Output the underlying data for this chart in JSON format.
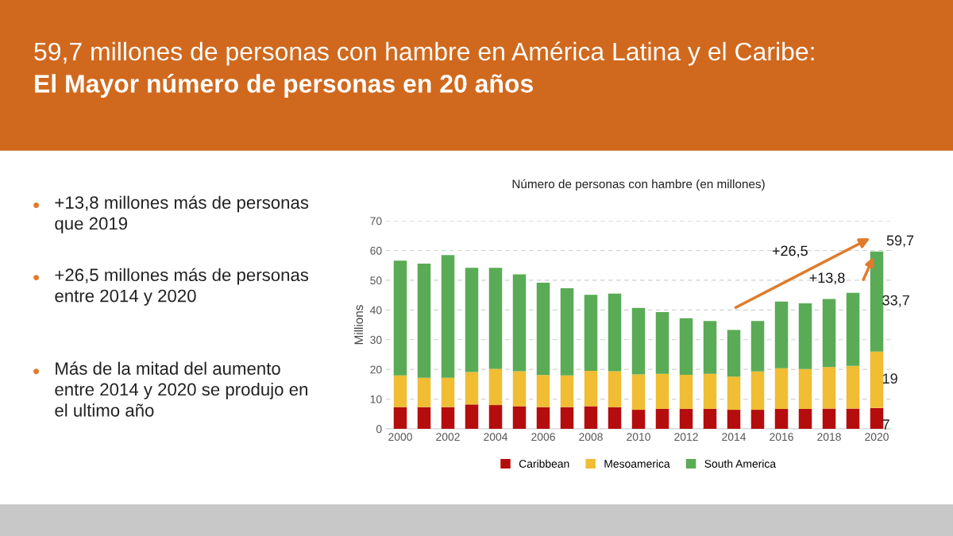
{
  "chart_data": {
    "type": "bar",
    "stacked": true,
    "title": "59,7 millones de personas con hambre en América Latina y el Caribe:",
    "subtitle": "El Mayor número de personas en 20 años",
    "ylabel": "Millions",
    "x": [
      2000,
      2001,
      2002,
      2003,
      2004,
      2005,
      2006,
      2007,
      2008,
      2009,
      2010,
      2011,
      2012,
      2013,
      2014,
      2015,
      2016,
      2017,
      2018,
      2019,
      2020
    ],
    "xlim": [
      1999.4,
      2020.6
    ],
    "xticks": [
      2000,
      2002,
      2004,
      2006,
      2008,
      2010,
      2012,
      2014,
      2016,
      2018,
      2020
    ],
    "ylim": [
      0,
      70
    ],
    "yticks": [
      0,
      10,
      20,
      30,
      40,
      50,
      60,
      70
    ],
    "grid": "y",
    "legend": "bottom",
    "series": [
      {
        "name": "Caribbean",
        "color": "#b50d0d",
        "values": [
          7.3,
          7.3,
          7.3,
          8.2,
          8.0,
          7.6,
          7.3,
          7.3,
          7.6,
          7.3,
          6.4,
          6.7,
          6.7,
          6.7,
          6.4,
          6.4,
          6.7,
          6.7,
          6.8,
          6.8,
          7
        ],
        "value_labels": [
          null,
          null,
          null,
          null,
          null,
          null,
          null,
          null,
          null,
          null,
          null,
          null,
          null,
          null,
          null,
          null,
          null,
          null,
          null,
          null,
          "7"
        ]
      },
      {
        "name": "Mesoamerica",
        "color": "#f0bd33",
        "values": [
          10.7,
          9.9,
          9.9,
          10.9,
          12.2,
          11.8,
          10.8,
          10.7,
          11.9,
          12.1,
          11.9,
          11.8,
          11.5,
          11.8,
          11.2,
          12.9,
          13.7,
          13.4,
          14.0,
          14.4,
          19
        ],
        "value_labels": [
          null,
          null,
          null,
          null,
          null,
          null,
          null,
          null,
          null,
          null,
          null,
          null,
          null,
          null,
          null,
          null,
          null,
          null,
          null,
          null,
          "19"
        ]
      },
      {
        "name": "South America",
        "color": "#5aab55",
        "values": [
          38.6,
          38.4,
          41.3,
          35.1,
          34.0,
          32.6,
          31.1,
          29.3,
          25.6,
          26.1,
          22.4,
          20.8,
          19.0,
          17.8,
          15.7,
          17.0,
          22.4,
          22.1,
          22.9,
          24.6,
          33.7
        ],
        "value_labels": [
          null,
          null,
          null,
          null,
          null,
          null,
          null,
          null,
          null,
          null,
          null,
          null,
          null,
          null,
          null,
          null,
          null,
          null,
          null,
          null,
          "33,7"
        ]
      }
    ],
    "totals": [
      null,
      null,
      null,
      null,
      null,
      null,
      null,
      null,
      null,
      null,
      null,
      null,
      null,
      null,
      null,
      null,
      null,
      null,
      null,
      null,
      "59,7"
    ],
    "annotations": [
      "Número de personas con hambre (en millones)",
      "+13,8 millones más de personas\nque 2019",
      "+26,5 millones más de personas\nentre 2014 y 2020",
      "Más de la mitad del aumento\nentre 2014 y 2020 se produjo en\nel ultimo año",
      "+26,5",
      {
        "text": "+13,8",
        "x": 2020,
        "y": 59.7
      }
    ]
  }
}
